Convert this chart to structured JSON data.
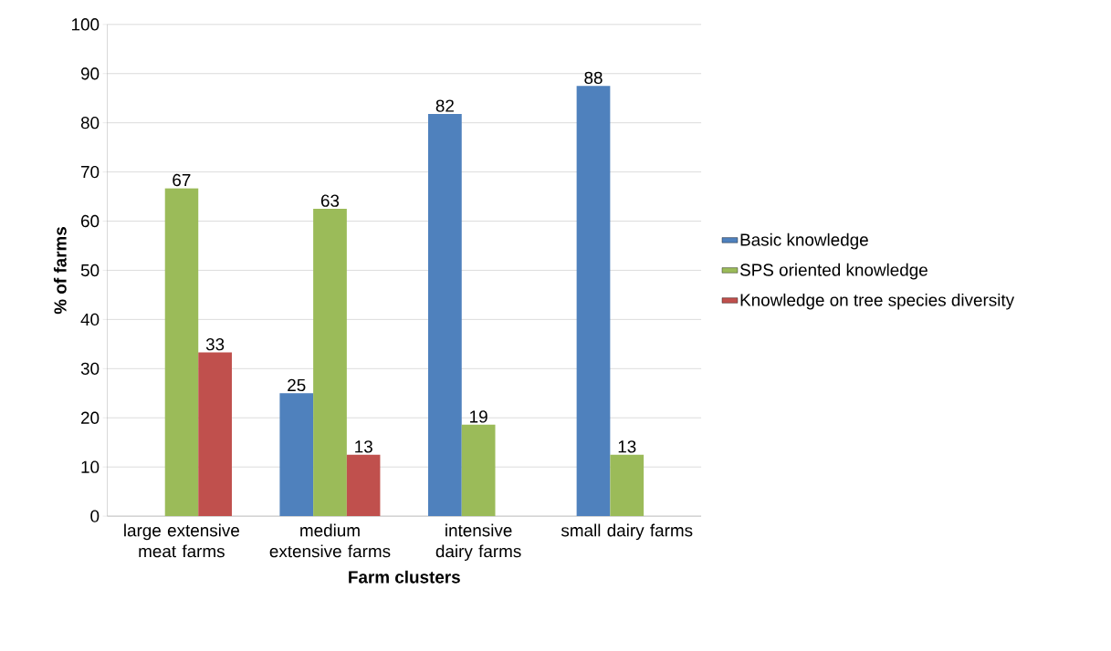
{
  "chart_data": {
    "type": "bar",
    "xlabel": "Farm clusters",
    "ylabel": "% of farms",
    "categories": [
      "large extensive meat farms",
      "medium extensive farms",
      "intensive dairy farms",
      "small dairy farms"
    ],
    "series": [
      {
        "name": "Basic knowledge",
        "color": "#4f81bd",
        "values": [
          null,
          25,
          81.8,
          87.5
        ],
        "value_labels": [
          null,
          "25",
          "82",
          "88"
        ]
      },
      {
        "name": "SPS oriented knowledge",
        "color": "#9bbb59",
        "values": [
          66.7,
          62.5,
          18.6,
          12.5
        ],
        "value_labels": [
          "67",
          "63",
          "19",
          "13"
        ]
      },
      {
        "name": "Knowledge on tree species diversity",
        "color": "#c0504d",
        "values": [
          33.3,
          12.5,
          null,
          null
        ],
        "value_labels": [
          "33",
          "13",
          null,
          null
        ]
      }
    ],
    "ylim": [
      0,
      100
    ],
    "yticks": [
      0,
      10,
      20,
      30,
      40,
      50,
      60,
      70,
      80,
      90,
      100
    ],
    "grid": "y",
    "legend": "right"
  }
}
